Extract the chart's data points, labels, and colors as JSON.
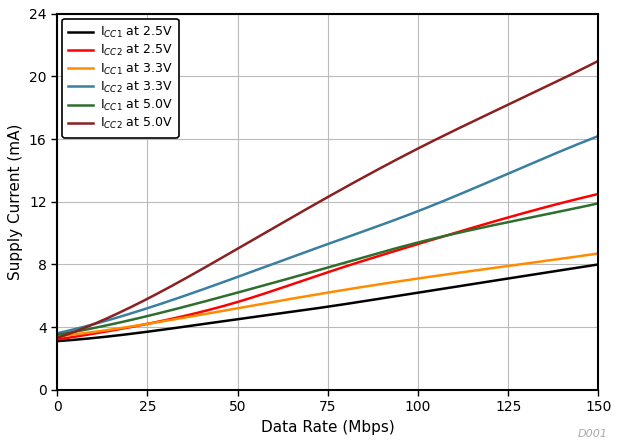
{
  "title": "",
  "xlabel": "Data Rate (Mbps)",
  "ylabel": "Supply Current (mA)",
  "xlim": [
    0,
    150
  ],
  "ylim": [
    0,
    24
  ],
  "xticks": [
    0,
    25,
    50,
    75,
    100,
    125,
    150
  ],
  "yticks": [
    0,
    4,
    8,
    12,
    16,
    20,
    24
  ],
  "series": [
    {
      "label": "I$_{CC1}$ at 2.5V",
      "color": "#000000",
      "x": [
        0,
        25,
        50,
        75,
        100,
        125,
        150
      ],
      "y": [
        3.1,
        3.7,
        4.5,
        5.3,
        6.2,
        7.1,
        8.0
      ]
    },
    {
      "label": "I$_{CC2}$ at 2.5V",
      "color": "#ff0000",
      "x": [
        0,
        25,
        50,
        75,
        100,
        125,
        150
      ],
      "y": [
        3.2,
        4.2,
        5.6,
        7.5,
        9.3,
        11.0,
        12.5
      ]
    },
    {
      "label": "I$_{CC1}$ at 3.3V",
      "color": "#ff8c00",
      "x": [
        0,
        25,
        50,
        75,
        100,
        125,
        150
      ],
      "y": [
        3.4,
        4.2,
        5.2,
        6.2,
        7.1,
        7.9,
        8.7
      ]
    },
    {
      "label": "I$_{CC2}$ at 3.3V",
      "color": "#3a7ea0",
      "x": [
        0,
        25,
        50,
        75,
        100,
        125,
        150
      ],
      "y": [
        3.6,
        5.2,
        7.2,
        9.3,
        11.4,
        13.8,
        16.2
      ]
    },
    {
      "label": "I$_{CC1}$ at 5.0V",
      "color": "#2e6e2e",
      "x": [
        0,
        25,
        50,
        75,
        100,
        125,
        150
      ],
      "y": [
        3.5,
        4.7,
        6.2,
        7.8,
        9.4,
        10.7,
        11.9
      ]
    },
    {
      "label": "I$_{CC2}$ at 5.0V",
      "color": "#8b2020",
      "x": [
        0,
        25,
        50,
        75,
        100,
        125,
        150
      ],
      "y": [
        3.3,
        5.8,
        9.0,
        12.3,
        15.4,
        18.2,
        21.0
      ]
    }
  ],
  "watermark": "D001",
  "background_color": "#ffffff",
  "grid_color": "#bbbbbb",
  "linewidth": 1.8
}
